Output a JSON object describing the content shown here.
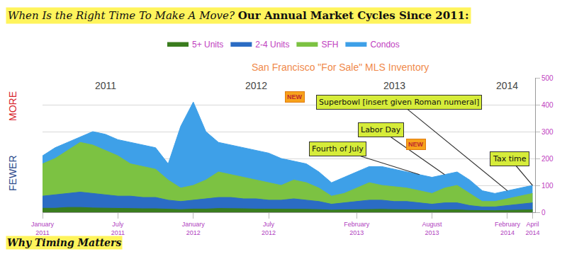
{
  "chart_data": {
    "type": "area",
    "title": "When Is the Right Time To Make A Move? Our Annual Market Cycles Since 2011:",
    "subtitle": "San Francisco \"For Sale\" MLS Inventory",
    "footer": "Why Timing Matters",
    "ylabel": {
      "low": "FEWER",
      "high": "MORE"
    },
    "categories": [
      "January 2011",
      null,
      null,
      null,
      null,
      null,
      "July 2011",
      null,
      null,
      null,
      null,
      null,
      "January 2012",
      null,
      null,
      null,
      null,
      null,
      "July 2012",
      null,
      null,
      null,
      null,
      null,
      null,
      "February 2013",
      null,
      null,
      null,
      null,
      null,
      "August 2013",
      null,
      null,
      null,
      null,
      null,
      "February 2014",
      null,
      "April 2014"
    ],
    "series": [
      {
        "name": "5+ Units",
        "color": "#3a7d1e",
        "values": [
          15,
          15,
          18,
          18,
          16,
          15,
          14,
          14,
          13,
          13,
          12,
          10,
          12,
          12,
          14,
          14,
          13,
          12,
          12,
          11,
          12,
          11,
          10,
          8,
          9,
          10,
          11,
          11,
          10,
          10,
          9,
          8,
          9,
          9,
          7,
          6,
          6,
          7,
          8,
          9
        ]
      },
      {
        "name": "2-4 Units",
        "color": "#2b6cc4",
        "values": [
          60,
          65,
          70,
          75,
          70,
          65,
          60,
          60,
          55,
          55,
          45,
          40,
          45,
          50,
          55,
          55,
          50,
          50,
          45,
          45,
          50,
          45,
          40,
          30,
          35,
          40,
          45,
          45,
          40,
          40,
          35,
          30,
          35,
          35,
          25,
          20,
          20,
          25,
          30,
          35
        ]
      },
      {
        "name": "SFH",
        "color": "#7cc242",
        "values": [
          180,
          200,
          230,
          260,
          250,
          230,
          210,
          180,
          170,
          160,
          120,
          90,
          100,
          120,
          150,
          140,
          130,
          120,
          110,
          100,
          120,
          110,
          90,
          60,
          70,
          90,
          110,
          100,
          95,
          90,
          80,
          70,
          90,
          100,
          70,
          40,
          40,
          50,
          60,
          70
        ]
      },
      {
        "name": "Condos",
        "color": "#3ea0e8",
        "values": [
          210,
          240,
          260,
          280,
          300,
          290,
          270,
          260,
          250,
          240,
          180,
          320,
          410,
          300,
          260,
          250,
          240,
          230,
          220,
          200,
          190,
          180,
          150,
          110,
          130,
          150,
          170,
          170,
          160,
          150,
          140,
          130,
          140,
          150,
          120,
          80,
          70,
          80,
          90,
          100
        ]
      }
    ],
    "ylim": [
      0,
      500
    ],
    "yticks": [
      0,
      100,
      200,
      300,
      400,
      500
    ],
    "grid": true,
    "stacked": false,
    "legend": "top",
    "year_labels": [
      {
        "text": "2011",
        "x": 5,
        "y": 470
      },
      {
        "text": "2012",
        "x": 17,
        "y": 470
      },
      {
        "text": "2013",
        "x": 28,
        "y": 470
      },
      {
        "text": "2014",
        "x": 37,
        "y": 470
      }
    ],
    "annotations": [
      {
        "text": "Fourth of July",
        "x": 30,
        "y": 140
      },
      {
        "text": "Labor Day",
        "x": 32,
        "y": 140,
        "badge": "NEW"
      },
      {
        "text": "Superbowl [insert given Roman numeral]",
        "x": 37,
        "y": 80,
        "badge": "NEW"
      },
      {
        "text": "Tax time",
        "x": 39,
        "y": 100
      }
    ]
  }
}
